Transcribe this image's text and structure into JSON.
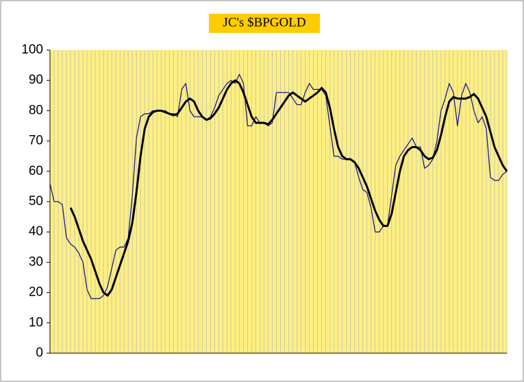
{
  "chart_data": {
    "type": "line",
    "title": "JC's $BPGOLD",
    "categories": [
      null,
      null,
      null,
      null,
      null,
      null,
      null,
      null,
      null,
      null,
      null,
      null,
      null,
      null,
      null,
      null,
      null,
      null,
      null,
      null,
      null,
      null,
      null,
      null,
      null,
      null,
      null,
      null,
      null,
      null,
      null,
      null,
      null,
      null,
      null,
      null,
      null,
      null,
      null,
      null,
      null,
      null,
      null,
      null,
      null,
      null,
      null,
      null,
      null,
      null,
      null,
      null,
      null,
      null,
      null,
      null,
      null,
      null,
      null,
      null,
      null,
      null,
      null,
      null,
      null,
      null,
      null,
      null,
      null,
      null,
      null,
      null,
      null,
      null,
      null,
      null,
      null,
      null,
      null,
      null,
      null,
      null,
      null,
      null,
      null,
      null,
      null,
      null,
      null,
      null,
      null,
      null,
      null,
      null,
      null,
      null,
      null,
      null,
      null,
      null,
      null,
      null,
      null,
      null,
      null,
      null,
      null,
      null,
      null,
      null,
      null,
      null
    ],
    "series": [
      {
        "color": "#1a1a8c",
        "width": 1.3,
        "values": [
          56,
          50,
          50,
          49,
          38,
          36,
          35,
          33,
          30,
          21,
          18,
          18,
          18,
          19,
          22,
          28,
          34,
          35,
          35,
          38,
          52,
          71,
          78,
          79,
          79,
          80,
          80,
          80,
          80,
          79,
          79,
          78,
          87,
          89,
          80,
          78,
          78,
          78,
          77,
          78,
          81,
          85,
          87,
          89,
          90,
          89,
          92,
          89,
          75,
          75,
          78,
          76,
          76,
          75,
          76,
          86,
          86,
          86,
          86,
          84,
          82,
          82,
          86,
          89,
          87,
          87,
          87,
          85,
          75,
          65,
          65,
          64,
          64,
          64,
          63,
          58,
          54,
          53,
          48,
          40,
          40,
          42,
          42,
          52,
          62,
          65,
          67,
          69,
          71,
          68,
          68,
          61,
          62,
          64,
          70,
          80,
          84,
          89,
          86,
          75,
          85,
          89,
          86,
          80,
          76,
          78,
          74,
          58,
          57,
          57,
          59,
          60
        ]
      },
      {
        "color": "#000000",
        "width": 3,
        "values": [
          null,
          null,
          null,
          null,
          null,
          48,
          45,
          41,
          37,
          34,
          31,
          27,
          23,
          20,
          19,
          21,
          25,
          29,
          33,
          37,
          43,
          53,
          65,
          74,
          78,
          79.5,
          80,
          80,
          79.5,
          79,
          78.5,
          79,
          81,
          83,
          84,
          83,
          80,
          78,
          77,
          77.5,
          79,
          81,
          84,
          87,
          89,
          90,
          89,
          86,
          82,
          78,
          76,
          76,
          76,
          75.5,
          77,
          79,
          81,
          83,
          85,
          86,
          85,
          84,
          83,
          84,
          85,
          86,
          87.5,
          86,
          81,
          74,
          68,
          65,
          64,
          64,
          63,
          61,
          58,
          55,
          51,
          47,
          44,
          42,
          42,
          46,
          53,
          60,
          65,
          67,
          68,
          68,
          67,
          65,
          64,
          64.5,
          67,
          72,
          78,
          83,
          84.5,
          84,
          84,
          84,
          84.5,
          85.5,
          84,
          81,
          78,
          73,
          68,
          65,
          62,
          60
        ]
      }
    ],
    "ylim": [
      0,
      100
    ],
    "yticks": [
      0,
      10,
      20,
      30,
      40,
      50,
      60,
      70,
      80,
      90,
      100
    ],
    "grid": "x",
    "plot_background": "#ffef80",
    "title_background": "#ffcc00"
  }
}
